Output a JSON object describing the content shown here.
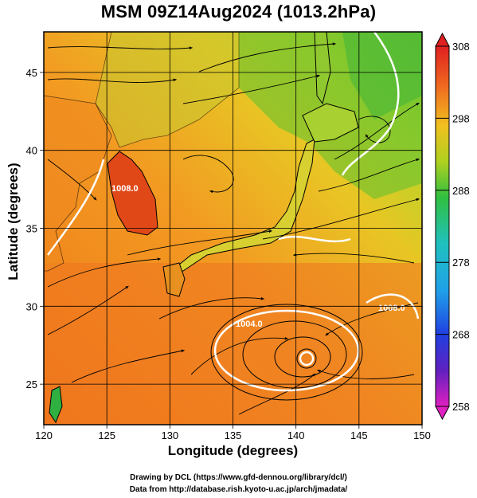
{
  "title": "MSM 09Z14Aug2024 (1013.2hPa)",
  "axes": {
    "xlabel": "Longitude (degrees)",
    "ylabel": "Latitude  (degrees)",
    "xlim": [
      120,
      150
    ],
    "ylim": [
      22.4,
      47.6
    ],
    "xticks": [
      "120",
      "125",
      "130",
      "135",
      "140",
      "145",
      "150"
    ],
    "yticks": [
      "25",
      "30",
      "35",
      "40",
      "45"
    ]
  },
  "colorbar": {
    "min": 258,
    "max": 308,
    "labels": [
      "308",
      "298",
      "288",
      "278",
      "268",
      "258"
    ],
    "colors": [
      "#e03020",
      "#f07020",
      "#f0a020",
      "#e8d020",
      "#a0d020",
      "#40c040",
      "#20c0a0",
      "#20a0e0",
      "#2050e0",
      "#4020c0",
      "#a020c0",
      "#e020a0"
    ]
  },
  "contours": [
    {
      "label": "1004.0"
    },
    {
      "label": "1008.0"
    },
    {
      "label": "1008.0"
    }
  ],
  "credits": {
    "line1": "Drawing by DCL (https://www.gfd-dennou.org/library/dcl/)",
    "line2": "Data from http://database.rish.kyoto-u.ac.jp/arch/jmadata/"
  }
}
